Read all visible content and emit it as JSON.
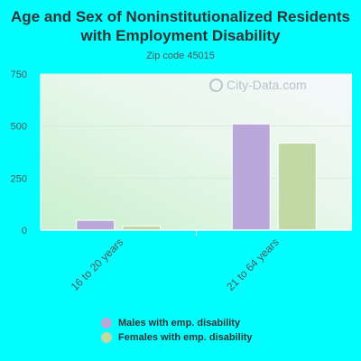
{
  "colors": {
    "page_bg": "#00ffff",
    "males": "#bba8da",
    "females": "#c3d9a5"
  },
  "watermark": {
    "icon": "magnifier-icon",
    "text": "City-Data.com"
  },
  "chart_data": {
    "type": "bar",
    "title": "Age and Sex of Noninstitutionalized Residents with Employment Disability",
    "subtitle": "Zip code 45015",
    "categories": [
      "16 to 20 years",
      "21 to 64 years"
    ],
    "series": [
      {
        "name": "Males with emp. disability",
        "values": [
          47,
          510
        ]
      },
      {
        "name": "Females with emp. disability",
        "values": [
          20,
          418
        ]
      }
    ],
    "y_ticks": [
      "0",
      "250",
      "500",
      "750"
    ],
    "ylim": [
      0,
      750
    ],
    "legend": "bottom"
  }
}
